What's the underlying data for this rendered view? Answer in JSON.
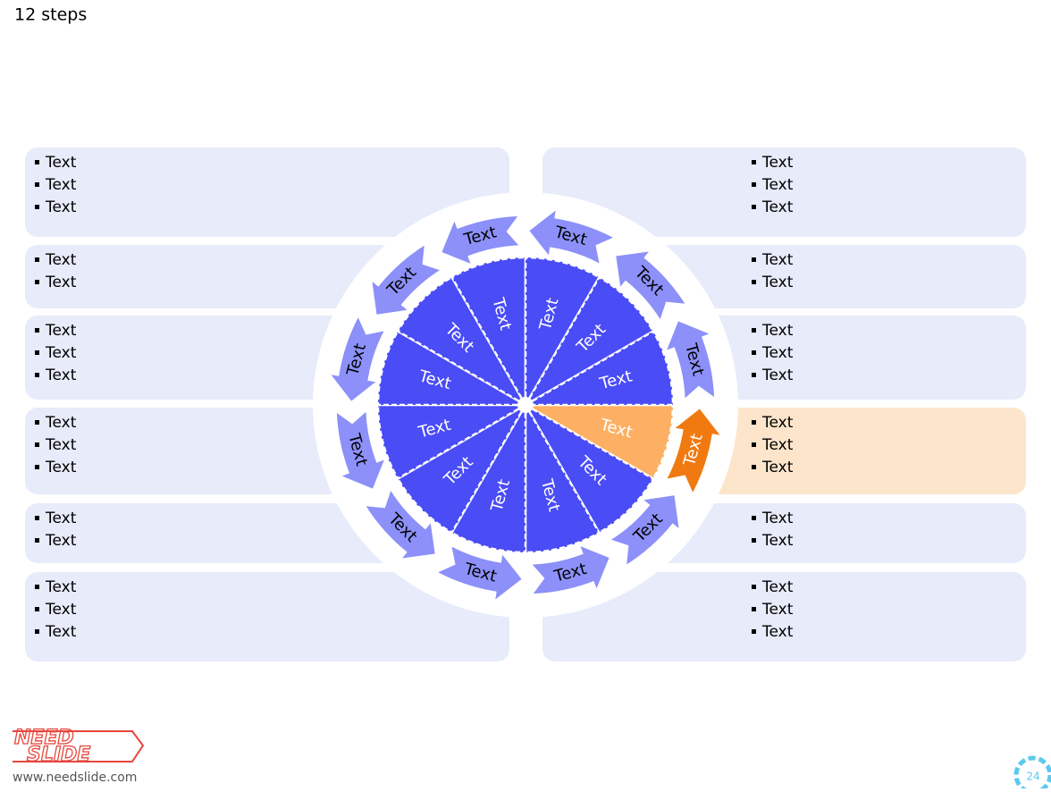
{
  "title": "12 steps",
  "left_panels": [
    {
      "items": [
        "Text",
        "Text",
        "Text"
      ]
    },
    {
      "items": [
        "Text",
        "Text"
      ]
    },
    {
      "items": [
        "Text",
        "Text",
        "Text"
      ]
    },
    {
      "items": [
        "Text",
        "Text",
        "Text"
      ]
    },
    {
      "items": [
        "Text",
        "Text"
      ]
    },
    {
      "items": [
        "Text",
        "Text",
        "Text"
      ]
    }
  ],
  "right_panels": [
    {
      "items": [
        "Text",
        "Text",
        "Text"
      ]
    },
    {
      "items": [
        "Text",
        "Text"
      ]
    },
    {
      "items": [
        "Text",
        "Text",
        "Text"
      ]
    },
    {
      "items": [
        "Text",
        "Text",
        "Text"
      ]
    },
    {
      "items": [
        "Text",
        "Text"
      ]
    },
    {
      "items": [
        "Text",
        "Text",
        "Text"
      ]
    }
  ],
  "arrows": [
    "Text",
    "Text",
    "Text",
    "Text",
    "Text",
    "Text",
    "Text",
    "Text",
    "Text",
    "Text",
    "Text",
    "Text"
  ],
  "slices": [
    "Text",
    "Text",
    "Text",
    "Text",
    "Text",
    "Text",
    "Text",
    "Text",
    "Text",
    "Text",
    "Text",
    "Text"
  ],
  "logo": {
    "line1": "NEED",
    "line2": "SLIDE"
  },
  "url": "www.needslide.com",
  "page_number": "24"
}
